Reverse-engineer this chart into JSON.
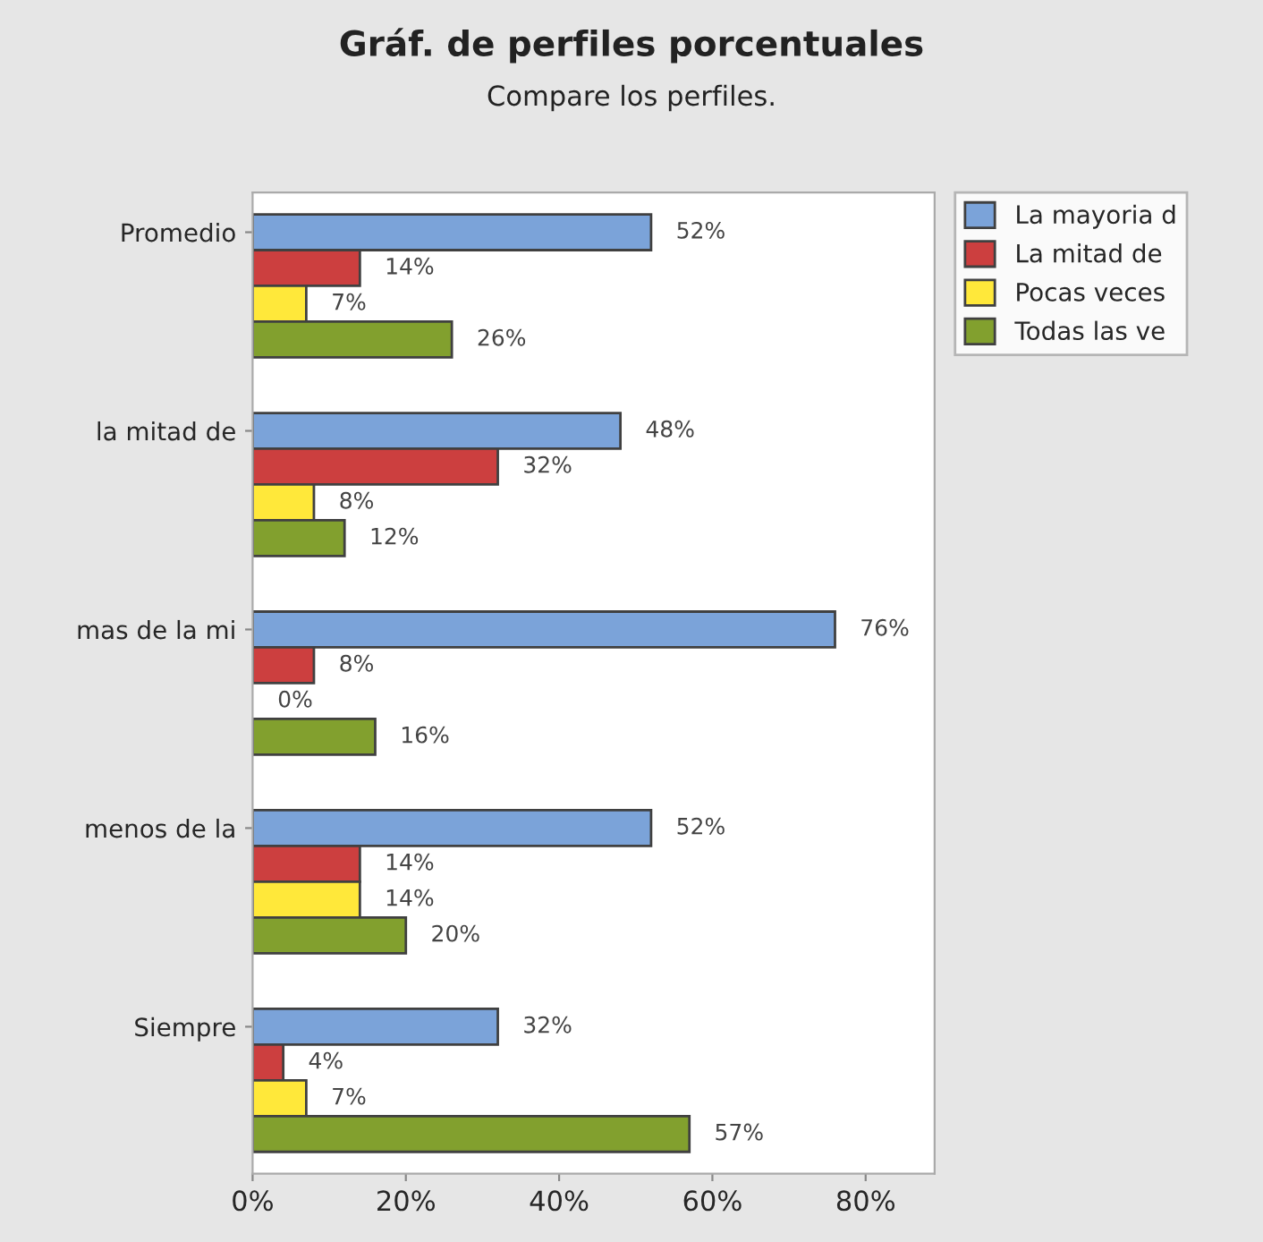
{
  "chart_data": {
    "type": "bar",
    "orientation": "horizontal",
    "title": "Gráf. de perfiles porcentuales",
    "subtitle": "Compare los perfiles.",
    "categories": [
      "Promedio",
      "la mitad de",
      "mas de la mi",
      "menos de la",
      "Siempre"
    ],
    "series": [
      {
        "name": "La mayoria d",
        "color": "#7ba3d9",
        "values": [
          52,
          48,
          76,
          52,
          32
        ],
        "value_labels": [
          "52%",
          "48%",
          "76%",
          "52%",
          "32%"
        ]
      },
      {
        "name": "La mitad de",
        "color": "#cc3f3f",
        "values": [
          14,
          32,
          8,
          14,
          4
        ],
        "value_labels": [
          "14%",
          "32%",
          "8%",
          "14%",
          "4%"
        ]
      },
      {
        "name": "Pocas veces",
        "color": "#ffe83a",
        "values": [
          7,
          8,
          0,
          14,
          7
        ],
        "value_labels": [
          "7%",
          "8%",
          "0%",
          "14%",
          "7%"
        ]
      },
      {
        "name": "Todas las ve",
        "color": "#82a02e",
        "values": [
          26,
          12,
          16,
          20,
          57
        ],
        "value_labels": [
          "26%",
          "12%",
          "16%",
          "20%",
          "57%"
        ]
      }
    ],
    "xlim": [
      0,
      89
    ],
    "xticks": [
      {
        "value": 0,
        "label": "0%"
      },
      {
        "value": 20,
        "label": "20%"
      },
      {
        "value": 40,
        "label": "40%"
      },
      {
        "value": 60,
        "label": "60%"
      },
      {
        "value": 80,
        "label": "80%"
      }
    ],
    "grid": false,
    "legend": "top right"
  }
}
